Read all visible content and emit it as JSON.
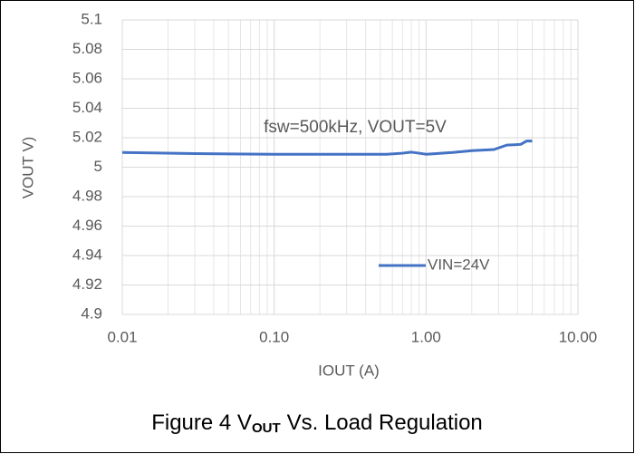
{
  "chart_data": {
    "type": "line",
    "annotation": "fsw=500kHz, VOUT=5V",
    "x_label": "IOUT (A)",
    "y_label": "VOUT V)",
    "caption": {
      "prefix": "Figure 4 V",
      "subscript": "OUT",
      "suffix": "Vs. Load Regulation"
    },
    "x_scale": "log",
    "grid": true,
    "legend": "lower right",
    "x": [
      0.01,
      0.03,
      0.1,
      0.3,
      0.55,
      0.7,
      0.8,
      0.9,
      1.0,
      1.5,
      2.0,
      2.8,
      3.4,
      3.8,
      4.2,
      4.6,
      5.0
    ],
    "series": [
      {
        "name": "VIN=24V",
        "color": "#4472c4",
        "values": [
          5.01,
          5.0092,
          5.0088,
          5.0088,
          5.0088,
          5.0095,
          5.0102,
          5.0095,
          5.0088,
          5.01,
          5.0112,
          5.012,
          5.015,
          5.0152,
          5.0155,
          5.0178,
          5.0178
        ]
      }
    ],
    "xlim": [
      0.01,
      10
    ],
    "xticks": [
      {
        "value": 0.01,
        "label": "0.01"
      },
      {
        "value": 0.1,
        "label": "0.10"
      },
      {
        "value": 1,
        "label": "1.00"
      },
      {
        "value": 10,
        "label": "10.00"
      }
    ],
    "ylim": [
      4.9,
      5.1
    ],
    "yticks": [
      4.9,
      4.92,
      4.94,
      4.96,
      4.98,
      5,
      5.02,
      5.04,
      5.06,
      5.08,
      5.1
    ]
  }
}
